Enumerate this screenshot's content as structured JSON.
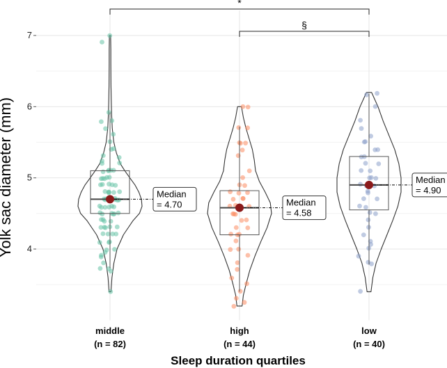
{
  "chart_data": {
    "type": "violin",
    "xlabel": "Sleep duration quartiles",
    "ylabel": "Yolk sac diameter (mm)",
    "ylim": [
      3.0,
      7.35
    ],
    "yticks": [
      "4",
      "5",
      "6",
      "7"
    ],
    "grid": true,
    "groups": [
      {
        "name": "middle",
        "n_label": "(n = 82)",
        "color": "#66c2a5",
        "q1": 4.5,
        "median": 4.7,
        "q3": 5.1,
        "whisker_low": 3.73,
        "whisker_high": 5.92,
        "min": 3.4,
        "max": 7.0,
        "mean": 4.7,
        "annotation": [
          "Median",
          "= 4.70"
        ],
        "density": [
          [
            3.4,
            0.03
          ],
          [
            3.6,
            0.06
          ],
          [
            3.8,
            0.12
          ],
          [
            4.0,
            0.22
          ],
          [
            4.2,
            0.42
          ],
          [
            4.4,
            0.72
          ],
          [
            4.5,
            0.92
          ],
          [
            4.6,
            1.0
          ],
          [
            4.7,
            0.98
          ],
          [
            4.8,
            0.9
          ],
          [
            4.9,
            0.78
          ],
          [
            5.0,
            0.62
          ],
          [
            5.1,
            0.46
          ],
          [
            5.2,
            0.32
          ],
          [
            5.35,
            0.2
          ],
          [
            5.5,
            0.12
          ],
          [
            5.7,
            0.07
          ],
          [
            5.9,
            0.05
          ],
          [
            6.1,
            0.04
          ],
          [
            6.3,
            0.03
          ],
          [
            6.6,
            0.025
          ],
          [
            6.8,
            0.025
          ],
          [
            7.0,
            0.02
          ]
        ],
        "points": [
          7.0,
          6.9,
          5.92,
          5.8,
          5.8,
          5.7,
          5.6,
          5.5,
          5.4,
          5.4,
          5.3,
          5.3,
          5.2,
          5.2,
          5.1,
          5.1,
          5.1,
          5.1,
          5.1,
          5.0,
          5.0,
          5.0,
          5.0,
          5.0,
          4.9,
          4.9,
          4.9,
          4.9,
          4.9,
          4.8,
          4.8,
          4.8,
          4.8,
          4.8,
          4.8,
          4.7,
          4.7,
          4.7,
          4.7,
          4.7,
          4.7,
          4.7,
          4.7,
          4.6,
          4.6,
          4.6,
          4.6,
          4.6,
          4.6,
          4.5,
          4.5,
          4.5,
          4.5,
          4.5,
          4.5,
          4.4,
          4.4,
          4.4,
          4.4,
          4.3,
          4.3,
          4.3,
          4.3,
          4.3,
          4.2,
          4.2,
          4.2,
          4.2,
          4.1,
          4.1,
          4.1,
          4.0,
          4.0,
          3.95,
          3.9,
          3.9,
          3.8,
          3.73,
          3.72,
          3.7,
          3.4,
          5.25
        ]
      },
      {
        "name": "high",
        "n_label": "(n = 44)",
        "color": "#fc8d62",
        "q1": 4.2,
        "median": 4.58,
        "q3": 4.82,
        "whisker_low": 3.4,
        "whisker_high": 5.72,
        "min": 3.2,
        "max": 6.0,
        "mean": 4.58,
        "annotation": [
          "Median",
          "= 4.58"
        ],
        "density": [
          [
            3.2,
            0.08
          ],
          [
            3.35,
            0.12
          ],
          [
            3.5,
            0.2
          ],
          [
            3.7,
            0.32
          ],
          [
            3.9,
            0.48
          ],
          [
            4.1,
            0.66
          ],
          [
            4.3,
            0.86
          ],
          [
            4.5,
            1.0
          ],
          [
            4.65,
            0.96
          ],
          [
            4.8,
            0.8
          ],
          [
            4.95,
            0.62
          ],
          [
            5.1,
            0.5
          ],
          [
            5.25,
            0.46
          ],
          [
            5.4,
            0.4
          ],
          [
            5.55,
            0.3
          ],
          [
            5.7,
            0.2
          ],
          [
            5.85,
            0.12
          ],
          [
            6.0,
            0.06
          ]
        ],
        "points": [
          6.0,
          6.0,
          5.72,
          5.7,
          5.5,
          5.5,
          5.5,
          5.4,
          5.3,
          5.1,
          5.0,
          4.9,
          4.9,
          4.8,
          4.8,
          4.8,
          4.7,
          4.7,
          4.7,
          4.6,
          4.6,
          4.6,
          4.5,
          4.5,
          4.5,
          4.4,
          4.4,
          4.3,
          4.3,
          4.2,
          4.2,
          4.2,
          4.1,
          4.0,
          4.0,
          3.9,
          3.8,
          3.7,
          3.6,
          3.5,
          3.4,
          3.3,
          3.25,
          3.2
        ]
      },
      {
        "name": "low",
        "n_label": "(n = 40)",
        "color": "#8da0cb",
        "q1": 4.55,
        "median": 4.9,
        "q3": 5.3,
        "whisker_low": 3.78,
        "whisker_high": 6.18,
        "min": 3.4,
        "max": 6.2,
        "mean": 4.9,
        "annotation": [
          "Median",
          "= 4.90"
        ],
        "density": [
          [
            3.4,
            0.06
          ],
          [
            3.6,
            0.12
          ],
          [
            3.8,
            0.22
          ],
          [
            4.0,
            0.38
          ],
          [
            4.2,
            0.56
          ],
          [
            4.4,
            0.74
          ],
          [
            4.6,
            0.9
          ],
          [
            4.8,
            1.0
          ],
          [
            5.0,
            1.0
          ],
          [
            5.2,
            0.93
          ],
          [
            5.4,
            0.8
          ],
          [
            5.6,
            0.62
          ],
          [
            5.8,
            0.44
          ],
          [
            6.0,
            0.28
          ],
          [
            6.1,
            0.18
          ],
          [
            6.2,
            0.08
          ]
        ],
        "points": [
          6.2,
          6.18,
          6.0,
          5.8,
          5.7,
          5.6,
          5.5,
          5.5,
          5.4,
          5.4,
          5.3,
          5.3,
          5.2,
          5.2,
          5.1,
          5.1,
          5.0,
          5.0,
          5.0,
          4.9,
          4.9,
          4.9,
          4.8,
          4.8,
          4.7,
          4.7,
          4.6,
          4.6,
          4.5,
          4.5,
          4.4,
          4.3,
          4.2,
          4.1,
          4.07,
          4.0,
          3.9,
          3.8,
          3.78,
          3.4
        ]
      }
    ],
    "comparisons": [
      {
        "from": 0,
        "to": 2,
        "label": "*"
      },
      {
        "from": 1,
        "to": 2,
        "label": "§"
      }
    ]
  }
}
